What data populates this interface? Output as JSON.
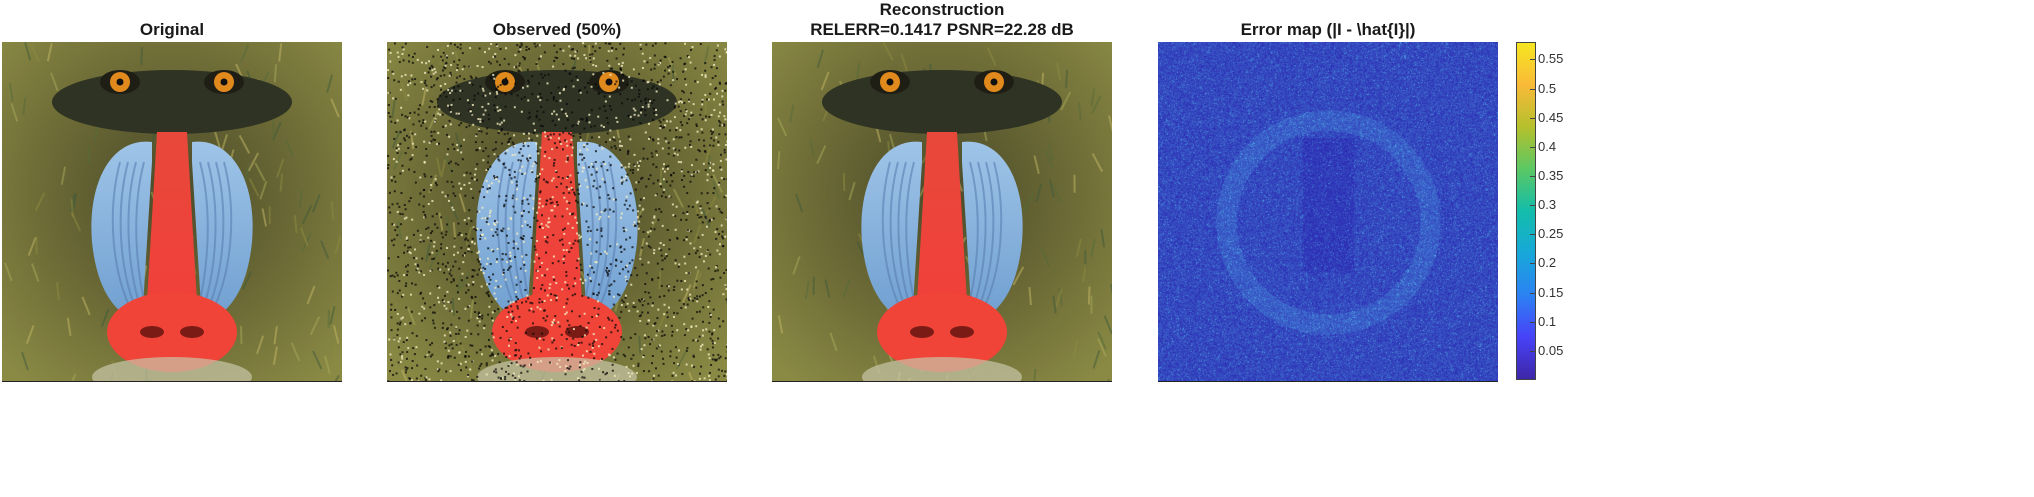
{
  "panels": [
    {
      "title": "Original",
      "kind": "clean",
      "icon": "baboon-face-image"
    },
    {
      "title": "Observed (50%)",
      "kind": "noisy",
      "icon": "baboon-face-image-sampled"
    },
    {
      "title_lines": [
        "Reconstruction",
        "RELERR=0.1417   PSNR=22.28 dB"
      ],
      "kind": "clean",
      "icon": "baboon-face-image-reconstructed"
    },
    {
      "title": "Error map (|I - \\hat{I}|)",
      "kind": "error",
      "icon": "error-heatmap"
    }
  ],
  "colorbar": {
    "min": 0,
    "max": 0.58,
    "ticks": [
      "0.05",
      "0.1",
      "0.15",
      "0.2",
      "0.25",
      "0.3",
      "0.35",
      "0.4",
      "0.45",
      "0.5",
      "0.55"
    ],
    "tick_values": [
      0.05,
      0.1,
      0.15,
      0.2,
      0.25,
      0.3,
      0.35,
      0.4,
      0.45,
      0.5,
      0.55
    ],
    "colormap": [
      "#3e26a8",
      "#4743f8",
      "#2c82f3",
      "#17a8d9",
      "#13bdaa",
      "#5bc864",
      "#b5c02c",
      "#f9ba38",
      "#f6e620"
    ]
  }
}
